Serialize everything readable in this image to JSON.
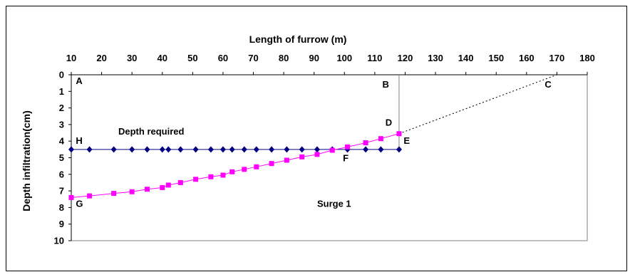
{
  "chart_data": {
    "type": "line",
    "xlabel": "Length of furrow (m)",
    "ylabel": "Depth infiltration(cm)",
    "xlim": [
      10,
      180
    ],
    "ylim": [
      0,
      10
    ],
    "y_inverted": true,
    "x_axis_position": "top",
    "xticks": [
      10,
      20,
      30,
      40,
      50,
      60,
      70,
      80,
      90,
      100,
      110,
      120,
      130,
      140,
      150,
      160,
      170,
      180
    ],
    "yticks": [
      0,
      1,
      2,
      3,
      4,
      5,
      6,
      7,
      8,
      9,
      10
    ],
    "grid": false,
    "legend": "none",
    "series": [
      {
        "marker": "diamond",
        "color": "#000080",
        "x": [
          10,
          16,
          24,
          30,
          35,
          40,
          42,
          46,
          51,
          56,
          60,
          63,
          67,
          71,
          76,
          81,
          86,
          91,
          96,
          101,
          107,
          112,
          118
        ],
        "y": [
          4.5,
          4.5,
          4.5,
          4.5,
          4.5,
          4.5,
          4.5,
          4.5,
          4.5,
          4.5,
          4.5,
          4.5,
          4.5,
          4.5,
          4.5,
          4.5,
          4.5,
          4.5,
          4.5,
          4.5,
          4.5,
          4.5,
          4.5
        ]
      },
      {
        "marker": "square",
        "color": "#FF00FF",
        "x": [
          10,
          16,
          24,
          30,
          35,
          40,
          42,
          46,
          51,
          56,
          60,
          63,
          67,
          71,
          76,
          81,
          86,
          91,
          96,
          101,
          107,
          112,
          118
        ],
        "y": [
          7.4,
          7.3,
          7.15,
          7.05,
          6.9,
          6.8,
          6.65,
          6.5,
          6.3,
          6.15,
          6.05,
          5.85,
          5.7,
          5.55,
          5.35,
          5.15,
          4.95,
          4.8,
          4.55,
          4.35,
          4.1,
          3.85,
          3.55
        ]
      }
    ],
    "reference_lines": [
      {
        "style": "solid",
        "color": "#808080",
        "x": [
          118,
          118
        ],
        "y": [
          0,
          4.5
        ]
      },
      {
        "style": "dotted",
        "color": "#000000",
        "x": [
          118,
          170
        ],
        "y": [
          3.55,
          0
        ]
      }
    ],
    "annotations": [
      {
        "text": "A",
        "x": 11.5,
        "y": 0.35
      },
      {
        "text": "B",
        "x": 112.5,
        "y": 0.55
      },
      {
        "text": "C",
        "x": 166,
        "y": 0.55
      },
      {
        "text": "D",
        "x": 113.5,
        "y": 2.85
      },
      {
        "text": "E",
        "x": 119.5,
        "y": 3.95
      },
      {
        "text": "F",
        "x": 99.5,
        "y": 5.0
      },
      {
        "text": "G",
        "x": 11.5,
        "y": 7.75
      },
      {
        "text": "H",
        "x": 11.5,
        "y": 3.95
      },
      {
        "text": "Depth required",
        "x": 25.5,
        "y": 3.4
      },
      {
        "text": "Surge 1",
        "x": 91,
        "y": 7.75
      }
    ]
  }
}
